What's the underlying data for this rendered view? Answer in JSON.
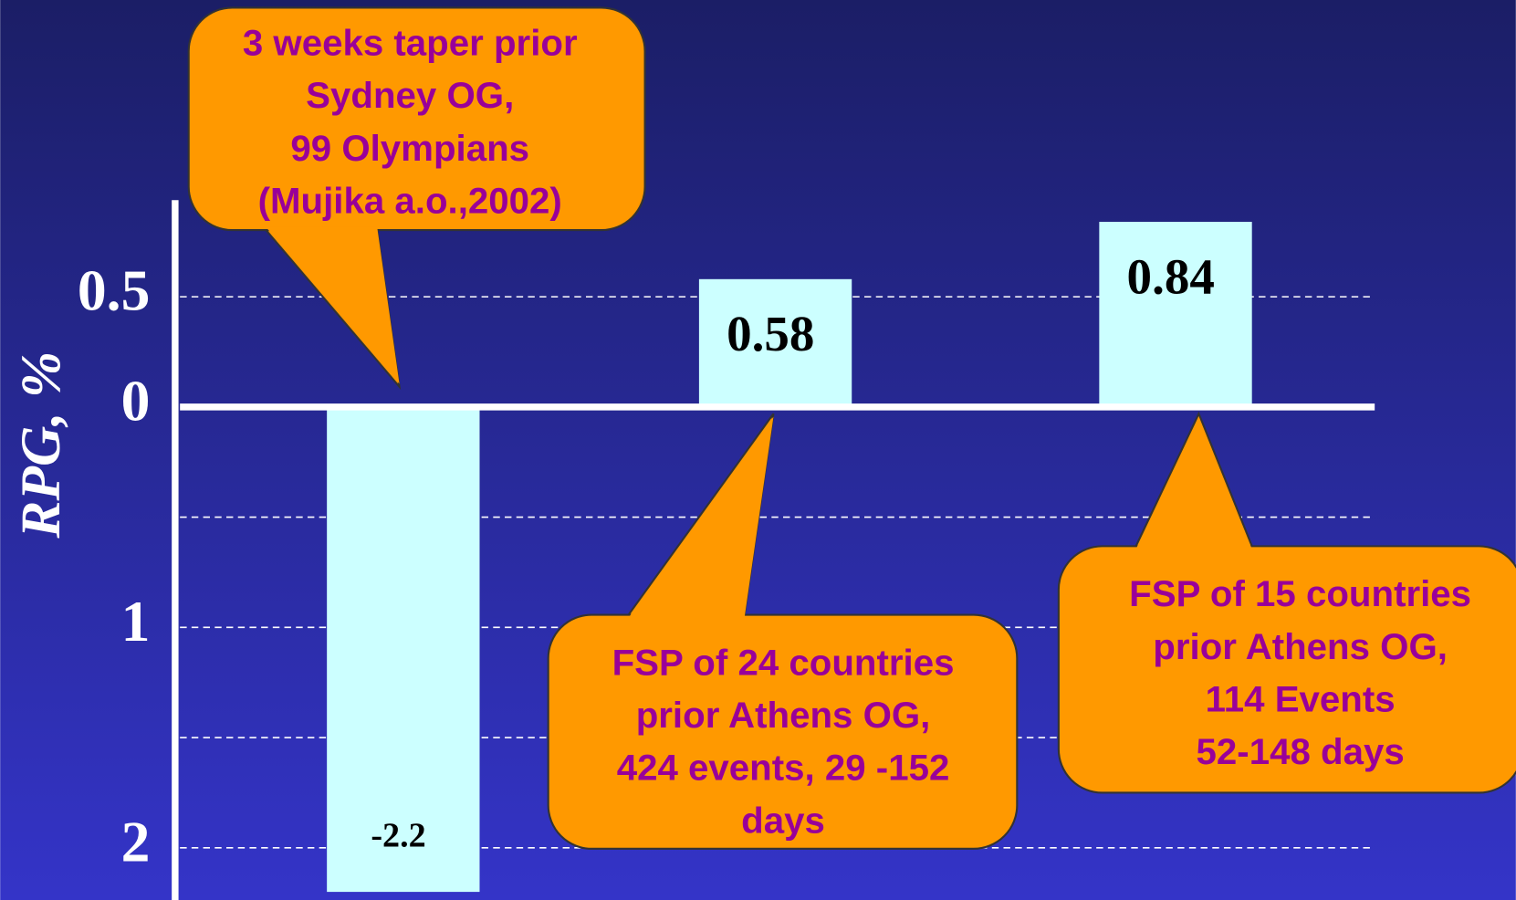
{
  "chart_data": {
    "type": "bar",
    "y_label": "RPG, %",
    "values": [
      -2.2,
      0.58,
      0.84
    ],
    "color": "#ccffff",
    "ylim": [
      -2.25,
      0.95
    ],
    "yticks": [
      {
        "value": 0.5,
        "label": "0.5"
      },
      0,
      {
        "value": -0.5,
        "label": null
      },
      {
        "value": -1,
        "label": "1"
      },
      {
        "value": -1.5,
        "label": null
      },
      {
        "value": -2,
        "label": "2"
      }
    ],
    "grid": true,
    "annotations": [
      {
        "lines": [
          "3 weeks taper prior",
          "Sydney OG,",
          "99 Olympians",
          "(Mujika a.o.,2002)"
        ]
      },
      {
        "lines": [
          "FSP of 24 countries",
          "prior Athens OG,",
          "424 events, 29 -152",
          "days"
        ]
      },
      {
        "lines": [
          "FSP of  15 countries",
          "prior Athens OG,",
          "114 Events",
          "52-148 days"
        ]
      }
    ]
  }
}
